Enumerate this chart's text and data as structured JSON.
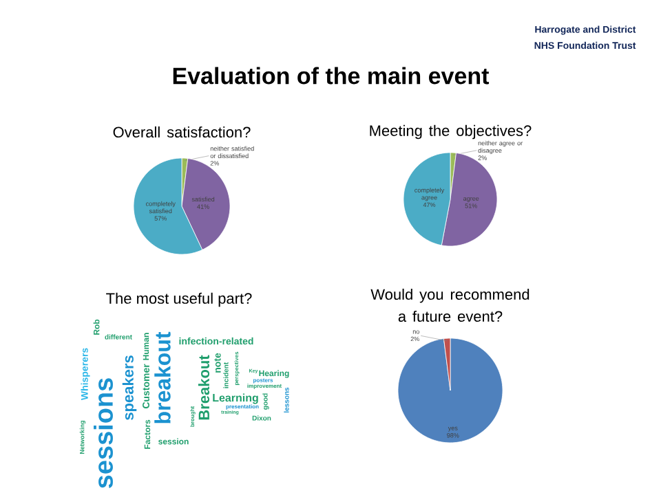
{
  "chart_data": [
    {
      "type": "other",
      "title": "Evaluation of the main event",
      "annotations": [
        "Harrogate and District",
        "NHS Foundation Trust"
      ]
    },
    {
      "type": "pie",
      "title": "Overall satisfaction?",
      "categories": [
        "neither satisfied or dissatisfied",
        "satisfied",
        "completely satisfied"
      ],
      "values": [
        2,
        41,
        57
      ],
      "colors": [
        "#9bbb59",
        "#8064a2",
        "#4bacc6"
      ],
      "value_labels": [
        "2%",
        "41%",
        "57%"
      ]
    },
    {
      "type": "pie",
      "title": "Meeting the objectives?",
      "categories": [
        "neither agree or disagree",
        "agree",
        "completely agree"
      ],
      "values": [
        2,
        51,
        47
      ],
      "colors": [
        "#9bbb59",
        "#8064a2",
        "#4bacc6"
      ],
      "value_labels": [
        "2%",
        "51%",
        "47%"
      ]
    },
    {
      "type": "other",
      "title": "The most useful part?",
      "annotations": [
        "sessions",
        "breakout",
        "speakers",
        "Breakout",
        "Whisperers",
        "Customer",
        "Human",
        "Factors",
        "Rob",
        "Networking",
        "infection-related",
        "Learning",
        "note",
        "incident",
        "session",
        "different",
        "Hearing",
        "improvement",
        "presentation",
        "Dixon",
        "lessons",
        "good",
        "perspectives",
        "brought",
        "posters",
        "Key",
        "training"
      ]
    },
    {
      "type": "pie",
      "title": "Would you recommend a future event?",
      "categories": [
        "yes",
        "no"
      ],
      "values": [
        98,
        2
      ],
      "colors": [
        "#4f81bd",
        "#c0504d"
      ],
      "value_labels": [
        "98%",
        "2%"
      ]
    }
  ]
}
